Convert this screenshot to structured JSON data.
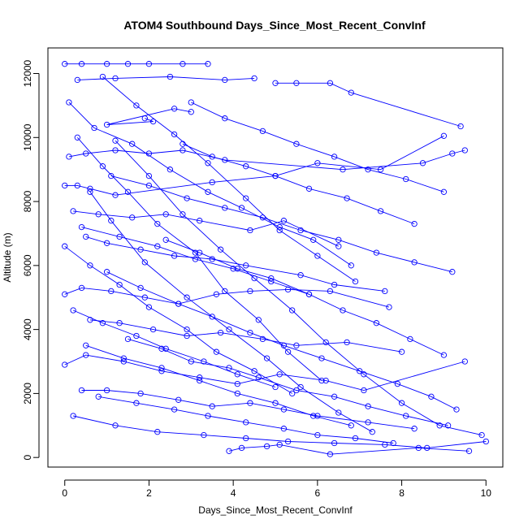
{
  "chart_data": {
    "type": "scatter",
    "title": "ATOM4 Southbound Days_Since_Most_Recent_ConvInf",
    "xlabel": "Days_Since_Most_Recent_ConvInf",
    "ylabel": "Altitude (m)",
    "xlim": [
      -0.4,
      10.4
    ],
    "ylim": [
      -300,
      12800
    ],
    "xticks": [
      0,
      2,
      4,
      6,
      8,
      10
    ],
    "yticks": [
      0,
      2000,
      4000,
      6000,
      8000,
      10000,
      12000
    ],
    "grid": false,
    "legend": "none",
    "marker": "open-circle",
    "connect_points": true,
    "series_color": "#0000ff",
    "series": [
      {
        "x": [
          0.0,
          0.4,
          1.0,
          1.5,
          2.0,
          2.8,
          3.4
        ],
        "y": [
          12300,
          12300,
          12300,
          12300,
          12300,
          12300,
          12300
        ]
      },
      {
        "x": [
          0.3,
          1.2,
          2.5,
          3.8,
          4.5
        ],
        "y": [
          11800,
          11850,
          11900,
          11800,
          11850
        ]
      },
      {
        "x": [
          5.0,
          5.5,
          6.3,
          6.8,
          9.4
        ],
        "y": [
          11700,
          11700,
          11700,
          11400,
          10350
        ]
      },
      {
        "x": [
          1.9,
          2.1,
          1.0,
          2.6,
          3.0
        ],
        "y": [
          10600,
          10500,
          10400,
          10900,
          10800
        ]
      },
      {
        "x": [
          0.1,
          0.5,
          1.2,
          2.0,
          2.8,
          3.8,
          6.6,
          8.5,
          9.2,
          9.5
        ],
        "y": [
          9400,
          9500,
          9600,
          9500,
          9600,
          9300,
          9000,
          9200,
          9500,
          9600
        ]
      },
      {
        "x": [
          0.0,
          0.3,
          0.6,
          1.2,
          3.5,
          5.0,
          6.0,
          7.5,
          9.0
        ],
        "y": [
          8500,
          8500,
          8400,
          8200,
          8600,
          8800,
          9200,
          9000,
          10050
        ]
      },
      {
        "x": [
          0.2,
          0.8,
          1.6,
          2.4,
          3.2,
          4.4,
          5.2,
          6.5
        ],
        "y": [
          7700,
          7600,
          7500,
          7600,
          7400,
          7100,
          7400,
          6600
        ]
      },
      {
        "x": [
          0.5,
          1.0,
          1.8,
          2.6,
          3.5,
          4.3,
          5.6,
          6.4,
          7.6
        ],
        "y": [
          6900,
          6700,
          6500,
          6300,
          6200,
          6000,
          5700,
          5400,
          5200
        ]
      },
      {
        "x": [
          0.0,
          0.4,
          1.1,
          1.9,
          2.7,
          3.6,
          4.4,
          5.3,
          6.3,
          7.7
        ],
        "y": [
          5100,
          5300,
          5200,
          5000,
          4800,
          5100,
          5200,
          5250,
          5200,
          4700
        ]
      },
      {
        "x": [
          0.6,
          1.3,
          2.1,
          2.9,
          3.7,
          4.7,
          5.5,
          6.7,
          8.0
        ],
        "y": [
          4300,
          4200,
          4000,
          3800,
          3900,
          3700,
          3500,
          3600,
          3300
        ]
      },
      {
        "x": [
          0.0,
          0.5,
          1.4,
          2.3,
          3.2,
          4.1,
          5.1,
          6.2,
          7.1,
          9.5
        ],
        "y": [
          2900,
          3200,
          3000,
          2700,
          2500,
          2300,
          2600,
          2400,
          2100,
          3000
        ]
      },
      {
        "x": [
          0.4,
          1.0,
          1.8,
          2.7,
          3.5,
          4.4,
          5.2,
          6.0,
          7.2,
          8.3
        ],
        "y": [
          2100,
          2100,
          2000,
          1800,
          1600,
          1700,
          1500,
          1300,
          1100,
          900
        ]
      },
      {
        "x": [
          0.2,
          1.2,
          2.2,
          3.3,
          4.3,
          5.3,
          6.4,
          7.6,
          8.6,
          10.0
        ],
        "y": [
          1300,
          1000,
          800,
          700,
          600,
          500,
          450,
          400,
          300,
          500
        ]
      },
      {
        "x": [
          3.9,
          4.2,
          4.8,
          5.1,
          6.3,
          8.4,
          9.6
        ],
        "y": [
          200,
          300,
          350,
          400,
          100,
          300,
          200
        ]
      },
      {
        "x": [
          0.1,
          0.7,
          1.6,
          2.5,
          3.4,
          4.2,
          5.1,
          5.9,
          6.8
        ],
        "y": [
          11100,
          10300,
          9800,
          9000,
          8300,
          7800,
          7200,
          6800,
          6000
        ]
      },
      {
        "x": [
          0.9,
          1.7,
          2.6,
          3.4,
          4.3,
          5.1,
          6.0,
          6.9
        ],
        "y": [
          11900,
          11000,
          10100,
          9200,
          8100,
          7100,
          6300,
          5500
        ]
      },
      {
        "x": [
          0.3,
          0.9,
          1.5,
          2.2,
          3.1,
          3.8,
          4.6,
          5.3,
          6.1
        ],
        "y": [
          10000,
          9100,
          8300,
          7300,
          6400,
          5200,
          4300,
          3300,
          2400
        ]
      },
      {
        "x": [
          1.2,
          2.0,
          2.8,
          3.7,
          4.5,
          5.4,
          6.2,
          7.1,
          8.0,
          8.9,
          9.9
        ],
        "y": [
          9900,
          8800,
          7600,
          6500,
          5600,
          4600,
          3600,
          2600,
          1700,
          1000,
          700
        ]
      },
      {
        "x": [
          0.6,
          1.1,
          1.9,
          2.9,
          3.9,
          4.8,
          5.6,
          6.5,
          7.3
        ],
        "y": [
          8300,
          7400,
          6100,
          5000,
          4000,
          3100,
          2200,
          1400,
          800
        ]
      },
      {
        "x": [
          2.4,
          3.2,
          4.1,
          4.9,
          5.8,
          6.6,
          7.4,
          8.2,
          9.0
        ],
        "y": [
          6800,
          6400,
          5900,
          5600,
          5100,
          4600,
          4200,
          3700,
          3200
        ]
      },
      {
        "x": [
          0.0,
          0.6,
          1.3,
          2.0,
          2.9,
          3.6,
          4.5,
          5.4
        ],
        "y": [
          6600,
          6000,
          5400,
          4700,
          4000,
          3300,
          2700,
          2000
        ]
      },
      {
        "x": [
          1.5,
          2.3,
          3.0,
          3.9,
          4.6,
          5.5,
          6.4,
          7.2,
          8.1,
          9.1
        ],
        "y": [
          3700,
          3400,
          3000,
          2800,
          2500,
          2100,
          1900,
          1600,
          1300,
          1000
        ]
      },
      {
        "x": [
          0.8,
          1.7,
          2.6,
          3.4,
          4.3,
          5.2,
          6.0,
          6.9,
          7.8
        ],
        "y": [
          1900,
          1700,
          1500,
          1300,
          1100,
          900,
          700,
          600,
          450
        ]
      },
      {
        "x": [
          2.8,
          3.5,
          4.3,
          5.0,
          5.8,
          6.7,
          7.5,
          8.3
        ],
        "y": [
          9800,
          9400,
          9100,
          8800,
          8400,
          8100,
          7700,
          7300
        ]
      },
      {
        "x": [
          0.4,
          1.3,
          2.2,
          3.1,
          4.0,
          4.9,
          5.8
        ],
        "y": [
          7200,
          6900,
          6600,
          6200,
          5900,
          5500,
          5100
        ]
      },
      {
        "x": [
          1.0,
          1.8,
          2.7,
          3.5,
          4.4,
          5.2,
          6.1,
          7.0,
          7.9,
          8.7,
          9.3
        ],
        "y": [
          5800,
          5300,
          4800,
          4400,
          3900,
          3500,
          3100,
          2700,
          2300,
          1900,
          1500
        ]
      },
      {
        "x": [
          0.2,
          0.9,
          1.7,
          2.4,
          3.3,
          4.1,
          5.0
        ],
        "y": [
          4600,
          4200,
          3800,
          3400,
          3000,
          2600,
          2200
        ]
      },
      {
        "x": [
          3.0,
          3.8,
          4.7,
          5.5,
          6.4,
          7.2,
          8.1,
          9.0
        ],
        "y": [
          11100,
          10600,
          10200,
          9800,
          9400,
          9000,
          8700,
          8300
        ]
      },
      {
        "x": [
          0.5,
          1.4,
          2.3,
          3.2,
          4.1,
          5.0,
          5.9,
          6.8
        ],
        "y": [
          3500,
          3100,
          2800,
          2400,
          2000,
          1700,
          1300,
          1000
        ]
      },
      {
        "x": [
          1.1,
          2.0,
          2.9,
          3.8,
          4.7,
          5.6,
          6.5,
          7.4,
          8.3,
          9.2
        ],
        "y": [
          8800,
          8500,
          8100,
          7800,
          7500,
          7100,
          6800,
          6400,
          6100,
          5800
        ]
      }
    ]
  }
}
